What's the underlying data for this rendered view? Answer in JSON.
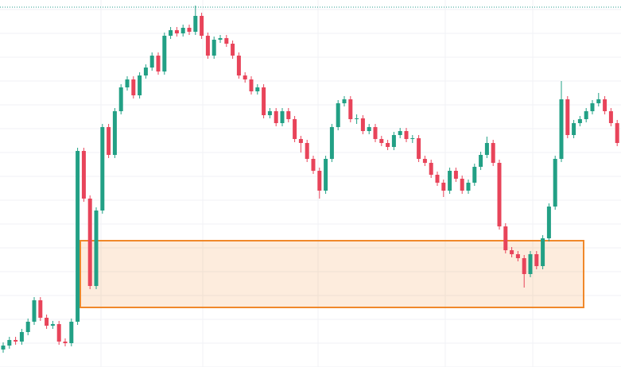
{
  "chart_data": {
    "type": "candlestick",
    "up_color": "#22a085",
    "down_color": "#e8445a",
    "ylim": [
      0,
      462
    ],
    "yticks": [
      0,
      30,
      60,
      90,
      120,
      150,
      180,
      210,
      240,
      270,
      300,
      330,
      360,
      390,
      420,
      450
    ],
    "grid": true,
    "price_line": {
      "value": 453,
      "color": "#2a9d8f"
    },
    "zone": {
      "low": 75,
      "high": 159,
      "color": "#f0882a"
    },
    "candles": [
      [
        22,
        31,
        18,
        27
      ],
      [
        27,
        38,
        23,
        34
      ],
      [
        34,
        38,
        28,
        32
      ],
      [
        32,
        48,
        28,
        44
      ],
      [
        44,
        61,
        40,
        57
      ],
      [
        57,
        88,
        53,
        84
      ],
      [
        84,
        88,
        58,
        62
      ],
      [
        62,
        66,
        48,
        52
      ],
      [
        52,
        58,
        48,
        54
      ],
      [
        54,
        58,
        28,
        32
      ],
      [
        32,
        36,
        26,
        30
      ],
      [
        30,
        61,
        26,
        57
      ],
      [
        57,
        276,
        53,
        272
      ],
      [
        272,
        276,
        208,
        212
      ],
      [
        212,
        216,
        98,
        102
      ],
      [
        102,
        201,
        98,
        197
      ],
      [
        197,
        306,
        193,
        302
      ],
      [
        302,
        306,
        263,
        267
      ],
      [
        267,
        326,
        263,
        322
      ],
      [
        322,
        356,
        318,
        352
      ],
      [
        352,
        366,
        348,
        362
      ],
      [
        362,
        366,
        338,
        342
      ],
      [
        342,
        371,
        338,
        367
      ],
      [
        367,
        381,
        363,
        377
      ],
      [
        377,
        396,
        373,
        392
      ],
      [
        392,
        396,
        368,
        372
      ],
      [
        372,
        421,
        368,
        417
      ],
      [
        417,
        428,
        413,
        424
      ],
      [
        424,
        428,
        416,
        420
      ],
      [
        420,
        431,
        416,
        427
      ],
      [
        427,
        431,
        418,
        422
      ],
      [
        422,
        455,
        418,
        442
      ],
      [
        442,
        446,
        413,
        417
      ],
      [
        417,
        421,
        388,
        392
      ],
      [
        392,
        416,
        388,
        412
      ],
      [
        412,
        418,
        408,
        414
      ],
      [
        414,
        418,
        403,
        407
      ],
      [
        407,
        411,
        388,
        392
      ],
      [
        392,
        396,
        363,
        367
      ],
      [
        367,
        371,
        358,
        362
      ],
      [
        362,
        366,
        343,
        347
      ],
      [
        347,
        356,
        343,
        352
      ],
      [
        352,
        356,
        313,
        317
      ],
      [
        317,
        326,
        313,
        322
      ],
      [
        322,
        326,
        303,
        307
      ],
      [
        307,
        326,
        303,
        322
      ],
      [
        322,
        326,
        308,
        312
      ],
      [
        312,
        316,
        283,
        287
      ],
      [
        287,
        291,
        270,
        282
      ],
      [
        282,
        286,
        258,
        262
      ],
      [
        262,
        266,
        243,
        247
      ],
      [
        247,
        251,
        212,
        222
      ],
      [
        222,
        266,
        218,
        262
      ],
      [
        262,
        306,
        258,
        302
      ],
      [
        302,
        336,
        298,
        332
      ],
      [
        332,
        341,
        328,
        337
      ],
      [
        337,
        341,
        308,
        312
      ],
      [
        312,
        318,
        306,
        313
      ],
      [
        313,
        317,
        293,
        297
      ],
      [
        297,
        306,
        293,
        302
      ],
      [
        302,
        306,
        283,
        287
      ],
      [
        287,
        291,
        278,
        282
      ],
      [
        282,
        286,
        273,
        277
      ],
      [
        277,
        296,
        273,
        292
      ],
      [
        292,
        301,
        288,
        297
      ],
      [
        297,
        301,
        283,
        287
      ],
      [
        287,
        292,
        282,
        288
      ],
      [
        288,
        292,
        258,
        262
      ],
      [
        262,
        266,
        253,
        257
      ],
      [
        257,
        261,
        238,
        242
      ],
      [
        242,
        246,
        228,
        232
      ],
      [
        232,
        236,
        214,
        222
      ],
      [
        222,
        251,
        218,
        247
      ],
      [
        247,
        251,
        233,
        237
      ],
      [
        237,
        241,
        218,
        222
      ],
      [
        222,
        236,
        218,
        232
      ],
      [
        232,
        256,
        228,
        252
      ],
      [
        252,
        271,
        248,
        267
      ],
      [
        267,
        290,
        263,
        282
      ],
      [
        282,
        286,
        253,
        257
      ],
      [
        257,
        261,
        173,
        177
      ],
      [
        177,
        181,
        143,
        147
      ],
      [
        147,
        151,
        138,
        142
      ],
      [
        142,
        146,
        133,
        137
      ],
      [
        137,
        141,
        100,
        117
      ],
      [
        117,
        146,
        113,
        142
      ],
      [
        142,
        146,
        123,
        127
      ],
      [
        127,
        166,
        123,
        162
      ],
      [
        162,
        206,
        158,
        202
      ],
      [
        202,
        266,
        198,
        262
      ],
      [
        262,
        360,
        258,
        337
      ],
      [
        337,
        341,
        288,
        292
      ],
      [
        292,
        311,
        288,
        307
      ],
      [
        307,
        316,
        303,
        312
      ],
      [
        312,
        326,
        308,
        322
      ],
      [
        322,
        336,
        318,
        332
      ],
      [
        332,
        345,
        328,
        337
      ],
      [
        337,
        341,
        318,
        322
      ],
      [
        322,
        326,
        303,
        307
      ],
      [
        307,
        311,
        278,
        282
      ]
    ]
  }
}
